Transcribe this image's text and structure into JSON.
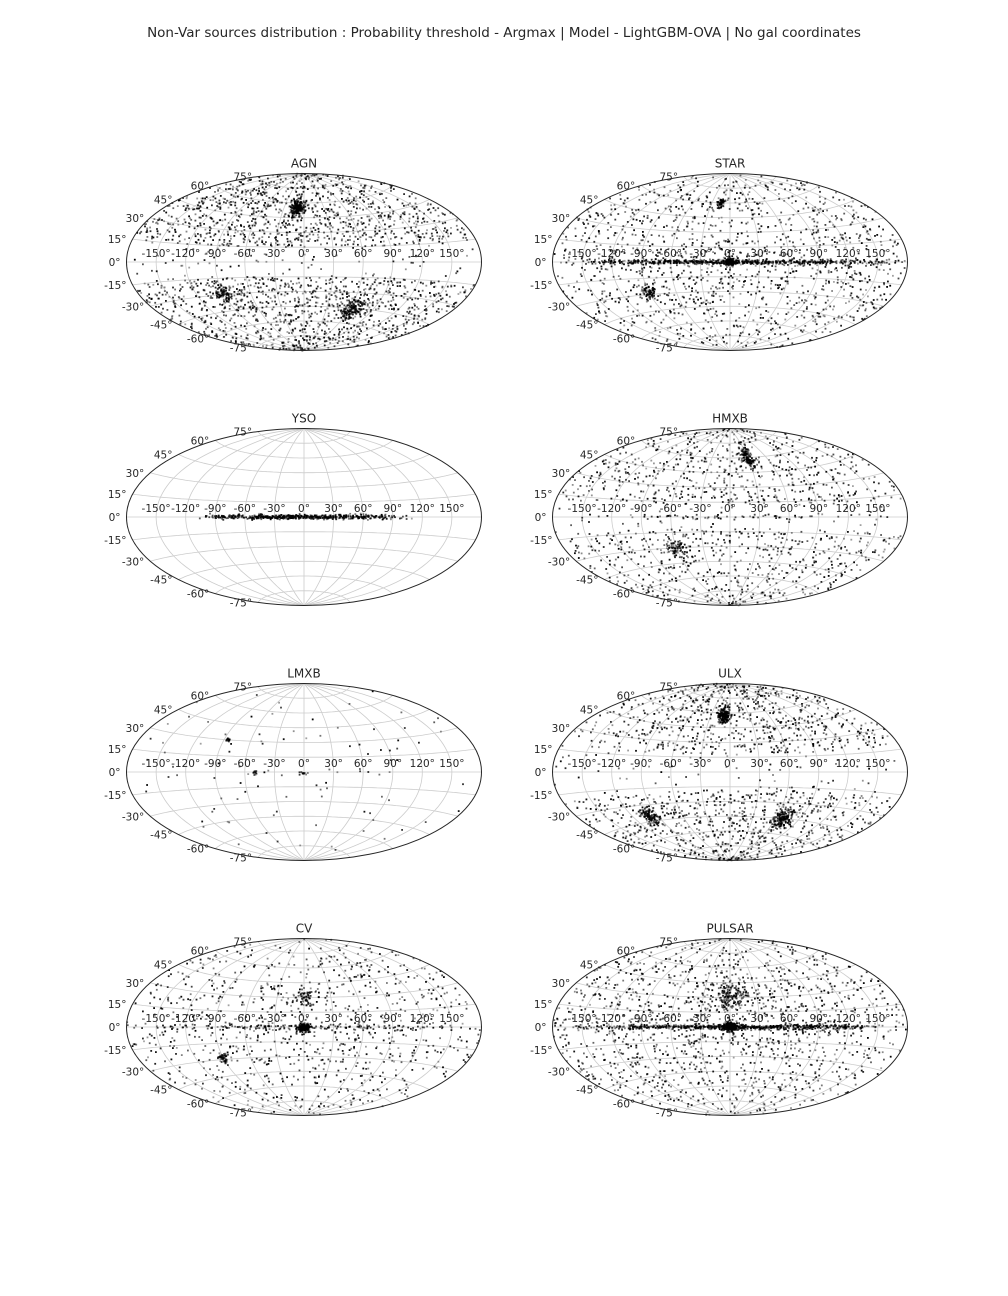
{
  "figure": {
    "title": "Non-Var sources distribution : Probability threshold - Argmax | Model - LightGBM-OVA | No gal coordinates"
  },
  "chart_data": [
    {
      "type": "scatter",
      "projection": "aitoff",
      "title": "AGN",
      "lon_ticks": [
        "-150°",
        "-120°",
        "-90°",
        "-60°",
        "-30°",
        "0°",
        "30°",
        "60°",
        "90°",
        "120°",
        "150°"
      ],
      "lat_ticks": [
        "-75°",
        "-60°",
        "-45°",
        "-30°",
        "-15°",
        "0°",
        "15°",
        "30°",
        "45°",
        "60°",
        "75°"
      ],
      "grid": true,
      "marker_color": "#000000",
      "density": {
        "clusters": [
          {
            "lon": -10,
            "lat": 55,
            "spread": 8,
            "weight": 0.08
          },
          {
            "lon": 65,
            "lat": -45,
            "spread": 9,
            "weight": 0.06
          },
          {
            "lon": -90,
            "lat": -28,
            "spread": 7,
            "weight": 0.03
          }
        ],
        "band_weight": 0.0,
        "avoid_plane_deg": 15,
        "uniform_weight": 0.83,
        "n_points": 2600
      }
    },
    {
      "type": "scatter",
      "projection": "aitoff",
      "title": "STAR",
      "lon_ticks": [
        "-150°",
        "-120°",
        "-90°",
        "-60°",
        "-30°",
        "0°",
        "30°",
        "60°",
        "90°",
        "120°",
        "150°"
      ],
      "lat_ticks": [
        "-75°",
        "-60°",
        "-45°",
        "-30°",
        "-15°",
        "0°",
        "15°",
        "30°",
        "45°",
        "60°",
        "75°"
      ],
      "grid": true,
      "marker_color": "#000000",
      "density": {
        "clusters": [
          {
            "lon": 0,
            "lat": 0,
            "spread": 4,
            "weight": 0.05
          },
          {
            "lon": -90,
            "lat": -28,
            "spread": 5,
            "weight": 0.03
          },
          {
            "lon": -15,
            "lat": 60,
            "spread": 4,
            "weight": 0.02
          }
        ],
        "band_weight": 0.25,
        "avoid_plane_deg": 0,
        "uniform_weight": 0.65,
        "n_points": 2200
      }
    },
    {
      "type": "scatter",
      "projection": "aitoff",
      "title": "YSO",
      "lon_ticks": [
        "-150°",
        "-120°",
        "-90°",
        "-60°",
        "-30°",
        "0°",
        "30°",
        "60°",
        "90°",
        "120°",
        "150°"
      ],
      "lat_ticks": [
        "-75°",
        "-60°",
        "-45°",
        "-30°",
        "-15°",
        "0°",
        "15°",
        "30°",
        "45°",
        "60°",
        "75°"
      ],
      "grid": true,
      "marker_color": "#000000",
      "density": {
        "clusters": [],
        "band_weight": 1.0,
        "band_extent_deg": 110,
        "avoid_plane_deg": 0,
        "uniform_weight": 0.0,
        "n_points": 500
      }
    },
    {
      "type": "scatter",
      "projection": "aitoff",
      "title": "HMXB",
      "lon_ticks": [
        "-150°",
        "-120°",
        "-90°",
        "-60°",
        "-30°",
        "0°",
        "30°",
        "60°",
        "90°",
        "120°",
        "150°"
      ],
      "lat_ticks": [
        "-75°",
        "-60°",
        "-45°",
        "-30°",
        "-15°",
        "0°",
        "15°",
        "30°",
        "45°",
        "60°",
        "75°"
      ],
      "grid": true,
      "marker_color": "#000000",
      "density": {
        "clusters": [
          {
            "lon": 30,
            "lat": 60,
            "spread": 8,
            "weight": 0.08
          },
          {
            "lon": -60,
            "lat": -30,
            "spread": 7,
            "weight": 0.05
          }
        ],
        "band_weight": 0.04,
        "avoid_plane_deg": 12,
        "uniform_weight": 0.83,
        "n_points": 1500
      }
    },
    {
      "type": "scatter",
      "projection": "aitoff",
      "title": "LMXB",
      "lon_ticks": [
        "-150°",
        "-120°",
        "-90°",
        "-60°",
        "-30°",
        "0°",
        "30°",
        "60°",
        "90°",
        "120°",
        "150°"
      ],
      "lat_ticks": [
        "-75°",
        "-60°",
        "-45°",
        "-30°",
        "-15°",
        "0°",
        "15°",
        "30°",
        "45°",
        "60°",
        "75°"
      ],
      "grid": true,
      "marker_color": "#000000",
      "density": {
        "clusters": [
          {
            "lon": -85,
            "lat": 30,
            "spread": 2,
            "weight": 0.1
          },
          {
            "lon": 0,
            "lat": -2,
            "spread": 2,
            "weight": 0.1
          },
          {
            "lon": -50,
            "lat": -1,
            "spread": 2,
            "weight": 0.08
          }
        ],
        "band_weight": 0.1,
        "avoid_plane_deg": 0,
        "uniform_weight": 0.62,
        "n_points": 140
      }
    },
    {
      "type": "scatter",
      "projection": "aitoff",
      "title": "ULX",
      "lon_ticks": [
        "-150°",
        "-120°",
        "-90°",
        "-60°",
        "-30°",
        "0°",
        "30°",
        "60°",
        "90°",
        "120°",
        "150°"
      ],
      "lat_ticks": [
        "-75°",
        "-60°",
        "-45°",
        "-30°",
        "-15°",
        "0°",
        "15°",
        "30°",
        "45°",
        "60°",
        "75°"
      ],
      "grid": true,
      "marker_color": "#000000",
      "density": {
        "clusters": [
          {
            "lon": -10,
            "lat": 58,
            "spread": 7,
            "weight": 0.1
          },
          {
            "lon": 70,
            "lat": -45,
            "spread": 9,
            "weight": 0.08
          },
          {
            "lon": -100,
            "lat": -40,
            "spread": 7,
            "weight": 0.05
          }
        ],
        "band_weight": 0.0,
        "avoid_plane_deg": 18,
        "uniform_weight": 0.77,
        "n_points": 2000
      }
    },
    {
      "type": "scatter",
      "projection": "aitoff",
      "title": "CV",
      "lon_ticks": [
        "-150°",
        "-120°",
        "-90°",
        "-60°",
        "-30°",
        "0°",
        "30°",
        "60°",
        "90°",
        "120°",
        "150°"
      ],
      "lat_ticks": [
        "-75°",
        "-60°",
        "-45°",
        "-30°",
        "-15°",
        "0°",
        "15°",
        "30°",
        "45°",
        "60°",
        "75°"
      ],
      "grid": true,
      "marker_color": "#000000",
      "density": {
        "clusters": [
          {
            "lon": 0,
            "lat": -1,
            "spread": 4,
            "weight": 0.12
          },
          {
            "lon": 0,
            "lat": 30,
            "spread": 10,
            "weight": 0.06
          },
          {
            "lon": -90,
            "lat": -28,
            "spread": 4,
            "weight": 0.03
          }
        ],
        "band_weight": 0.12,
        "avoid_plane_deg": 0,
        "uniform_weight": 0.67,
        "n_points": 1400
      }
    },
    {
      "type": "scatter",
      "projection": "aitoff",
      "title": "PULSAR",
      "lon_ticks": [
        "-150°",
        "-120°",
        "-90°",
        "-60°",
        "-30°",
        "0°",
        "30°",
        "60°",
        "90°",
        "120°",
        "150°"
      ],
      "lat_ticks": [
        "-75°",
        "-60°",
        "-45°",
        "-30°",
        "-15°",
        "0°",
        "15°",
        "30°",
        "45°",
        "60°",
        "75°"
      ],
      "grid": true,
      "marker_color": "#000000",
      "density": {
        "clusters": [
          {
            "lon": 0,
            "lat": 0,
            "spread": 5,
            "weight": 0.08
          },
          {
            "lon": 0,
            "lat": 30,
            "spread": 14,
            "weight": 0.08
          }
        ],
        "band_weight": 0.25,
        "avoid_plane_deg": 0,
        "uniform_weight": 0.59,
        "n_points": 2400
      }
    }
  ]
}
